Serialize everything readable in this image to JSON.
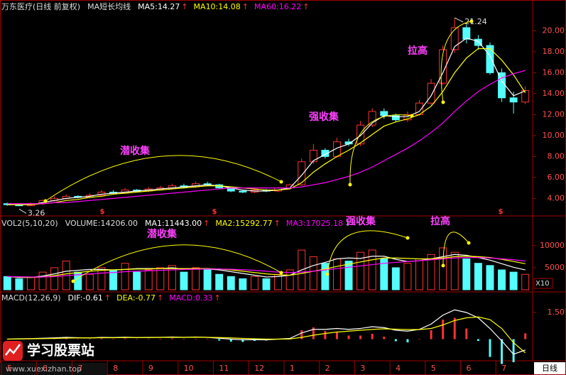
{
  "chart_data": [
    {
      "type": "candlestick",
      "title": "万东医疗(日线 前复权)",
      "subtitle": "MA短长均线",
      "categories": [
        "5",
        null,
        null,
        "6",
        null,
        null,
        "7",
        null,
        null,
        "8",
        null,
        null,
        "9",
        null,
        null,
        "10",
        null,
        null,
        "11",
        null,
        null,
        "12",
        null,
        null,
        "1",
        null,
        null,
        "2",
        null,
        null,
        "3",
        null,
        null,
        "4",
        null,
        null,
        "5",
        null,
        null,
        "6",
        null,
        null,
        "7",
        null,
        null
      ],
      "open": [
        3.5,
        3.4,
        3.3,
        3.5,
        3.8,
        4.0,
        4.2,
        4.1,
        4.3,
        4.6,
        4.5,
        4.8,
        4.7,
        4.9,
        5.0,
        5.2,
        5.1,
        5.4,
        5.3,
        5.0,
        4.7,
        4.6,
        4.8,
        4.7,
        5.0,
        5.3,
        7.5,
        8.6,
        8.0,
        9.4,
        9.2,
        11.0,
        12.3,
        11.9,
        11.5,
        12.0,
        13.1,
        15.0,
        18.2,
        20.3,
        19.2,
        18.6,
        16.0,
        13.6,
        13.2
      ],
      "high": [
        3.6,
        3.5,
        3.6,
        3.9,
        4.2,
        4.4,
        4.3,
        4.5,
        4.8,
        4.8,
        5.0,
        4.9,
        5.1,
        5.2,
        5.4,
        5.4,
        5.6,
        5.6,
        5.4,
        5.1,
        4.8,
        4.9,
        4.9,
        5.1,
        5.4,
        7.8,
        9.2,
        8.8,
        9.8,
        9.7,
        11.4,
        12.6,
        12.6,
        12.1,
        12.3,
        13.4,
        15.4,
        18.6,
        21.24,
        20.6,
        19.6,
        18.9,
        16.4,
        14.2,
        14.7
      ],
      "low": [
        3.3,
        3.26,
        3.3,
        3.4,
        3.7,
        3.9,
        4.0,
        4.0,
        4.2,
        4.4,
        4.4,
        4.6,
        4.6,
        4.8,
        4.9,
        5.0,
        5.0,
        5.2,
        4.9,
        4.6,
        4.5,
        4.5,
        4.6,
        4.6,
        4.9,
        5.2,
        7.3,
        7.8,
        7.9,
        9.0,
        9.0,
        10.8,
        11.6,
        11.3,
        11.3,
        11.9,
        12.9,
        14.8,
        17.9,
        18.8,
        18.2,
        15.8,
        13.2,
        12.1,
        13.0
      ],
      "close": [
        3.4,
        3.3,
        3.5,
        3.8,
        4.0,
        4.2,
        4.1,
        4.3,
        4.6,
        4.5,
        4.8,
        4.7,
        4.9,
        5.0,
        5.2,
        5.1,
        5.4,
        5.3,
        5.0,
        4.7,
        4.6,
        4.8,
        4.7,
        5.0,
        5.3,
        7.5,
        8.6,
        8.0,
        9.4,
        9.2,
        11.0,
        12.3,
        11.9,
        11.5,
        12.0,
        13.1,
        15.0,
        18.2,
        20.3,
        19.2,
        18.6,
        16.0,
        13.6,
        13.2,
        14.3
      ],
      "up_color": "#ff3232",
      "down_color": "#54fcfc",
      "series": [
        {
          "name": "MA5:14.27",
          "color": "#ffffff",
          "values": [
            3.4,
            3.4,
            3.4,
            3.6,
            3.8,
            4.0,
            4.1,
            4.2,
            4.4,
            4.5,
            4.6,
            4.7,
            4.8,
            4.9,
            5.0,
            5.1,
            5.2,
            5.3,
            5.2,
            5.0,
            4.8,
            4.7,
            4.7,
            4.8,
            5.0,
            6.2,
            7.6,
            8.2,
            8.8,
            9.2,
            10.0,
            11.2,
            11.9,
            11.8,
            11.8,
            12.3,
            13.8,
            16.0,
            18.5,
            19.3,
            19.0,
            17.6,
            15.2,
            13.8,
            14.27
          ]
        },
        {
          "name": "MA10:14.08",
          "color": "#ffff00",
          "values": [
            3.4,
            3.4,
            3.4,
            3.5,
            3.6,
            3.8,
            3.9,
            4.1,
            4.2,
            4.4,
            4.5,
            4.6,
            4.7,
            4.8,
            4.9,
            5.0,
            5.1,
            5.2,
            5.2,
            5.1,
            5.0,
            4.9,
            4.8,
            4.8,
            4.9,
            5.5,
            6.5,
            7.3,
            8.0,
            8.6,
            9.3,
            10.1,
            10.9,
            11.3,
            11.6,
            12.0,
            12.8,
            14.2,
            16.0,
            17.4,
            18.3,
            18.3,
            17.2,
            15.8,
            14.08
          ]
        },
        {
          "name": "MA60:16.22",
          "color": "#ff00ff",
          "values": [
            3.5,
            3.5,
            3.5,
            3.5,
            3.6,
            3.6,
            3.7,
            3.8,
            3.9,
            4.0,
            4.1,
            4.2,
            4.3,
            4.4,
            4.5,
            4.6,
            4.7,
            4.8,
            4.9,
            5.0,
            5.0,
            5.0,
            5.0,
            5.0,
            5.0,
            5.1,
            5.3,
            5.5,
            5.8,
            6.1,
            6.5,
            7.0,
            7.6,
            8.2,
            8.8,
            9.5,
            10.3,
            11.2,
            12.3,
            13.3,
            14.2,
            14.9,
            15.5,
            15.9,
            16.22
          ]
        }
      ],
      "ylim": [
        2.6,
        22.4
      ],
      "yticks": [
        {
          "value": 4,
          "label": "4.00"
        },
        {
          "value": 6,
          "label": "6.00"
        },
        {
          "value": 8,
          "label": "8.00"
        },
        {
          "value": 10,
          "label": "10.00"
        },
        {
          "value": 12,
          "label": "12.00"
        },
        {
          "value": 14,
          "label": "14.00"
        },
        {
          "value": 16,
          "label": "16.00"
        },
        {
          "value": 18,
          "label": "18.00"
        },
        {
          "value": 20,
          "label": "20.00"
        }
      ],
      "annotations": [
        "潜收集",
        "强收集",
        "拉高"
      ],
      "high_label": "21.24",
      "low_label": "3.26",
      "signal_label": "$"
    },
    {
      "type": "bar",
      "title": "VOL2(5,10,20)",
      "subtitle": "VOLUME:14206.00",
      "unit_label": "X10",
      "values": [
        3000,
        2500,
        2800,
        4000,
        5000,
        6500,
        4000,
        3500,
        5000,
        4500,
        6000,
        4000,
        4500,
        5000,
        5500,
        4000,
        5000,
        4500,
        3500,
        3000,
        2500,
        3000,
        2500,
        3500,
        4500,
        9000,
        7500,
        6000,
        7000,
        6500,
        8500,
        9000,
        7000,
        5000,
        6000,
        7000,
        8000,
        9500,
        8500,
        7000,
        6000,
        5500,
        4500,
        4000,
        3500
      ],
      "series": [
        {
          "name": "MA1:11443.00",
          "color": "#ffffff",
          "values": [
            3000,
            2800,
            2800,
            3100,
            3600,
            4200,
            4400,
            4600,
            4600,
            4500,
            4600,
            4800,
            4800,
            4800,
            5000,
            4700,
            4800,
            4700,
            4500,
            4100,
            3700,
            3300,
            2900,
            3000,
            3300,
            4500,
            5500,
            6200,
            7000,
            7200,
            7100,
            7600,
            7600,
            6900,
            6400,
            6600,
            7000,
            7500,
            8000,
            7800,
            7300,
            6700,
            5900,
            5100,
            4500
          ]
        },
        {
          "name": "MA2:15292.77",
          "color": "#ffff00",
          "values": [
            3000,
            2900,
            2800,
            2900,
            3200,
            3600,
            3900,
            4200,
            4400,
            4500,
            4600,
            4700,
            4700,
            4800,
            4800,
            4800,
            4800,
            4800,
            4700,
            4500,
            4200,
            3900,
            3600,
            3400,
            3300,
            3700,
            4200,
            4700,
            5300,
            5800,
            6300,
            6800,
            7200,
            7200,
            7100,
            7000,
            7000,
            7200,
            7500,
            7600,
            7500,
            7300,
            6900,
            6400,
            5900
          ]
        },
        {
          "name": "MA3:17025.18",
          "color": "#ff00ff",
          "values": [
            3000,
            2950,
            2900,
            2900,
            3000,
            3200,
            3400,
            3600,
            3800,
            3900,
            4100,
            4200,
            4300,
            4400,
            4500,
            4600,
            4650,
            4700,
            4700,
            4650,
            4550,
            4400,
            4200,
            4000,
            3900,
            4000,
            4200,
            4500,
            4800,
            5100,
            5400,
            5700,
            6000,
            6200,
            6400,
            6600,
            6800,
            7000,
            7200,
            7300,
            7300,
            7200,
            7000,
            6800,
            6500
          ]
        }
      ],
      "ylim": [
        0,
        14800
      ],
      "yticks": [
        5000,
        10000
      ],
      "annotations": [
        "潜收集",
        "强收集",
        "拉高"
      ]
    },
    {
      "type": "macd",
      "title": "MACD(12,26,9)",
      "series": [
        {
          "name": "DIF:-0.61",
          "color": "#ffffff",
          "values": [
            0,
            0.02,
            0.03,
            0.05,
            0.07,
            0.1,
            0.08,
            0.07,
            0.1,
            0.09,
            0.11,
            0.09,
            0.1,
            0.1,
            0.12,
            0.1,
            0.12,
            0.1,
            0.05,
            0,
            -0.04,
            -0.03,
            -0.04,
            0,
            0.04,
            0.35,
            0.55,
            0.55,
            0.6,
            0.55,
            0.6,
            0.7,
            0.65,
            0.5,
            0.45,
            0.55,
            0.85,
            1.35,
            1.65,
            1.5,
            1.2,
            0.6,
            -0.1,
            -0.85,
            -0.61
          ]
        },
        {
          "name": "DEA:-0.77",
          "color": "#ffff00",
          "values": [
            0,
            0.01,
            0.02,
            0.03,
            0.04,
            0.06,
            0.07,
            0.07,
            0.08,
            0.08,
            0.09,
            0.09,
            0.09,
            0.1,
            0.1,
            0.1,
            0.11,
            0.1,
            0.09,
            0.07,
            0.04,
            0.02,
            0,
            0,
            0.01,
            0.1,
            0.22,
            0.32,
            0.4,
            0.45,
            0.5,
            0.55,
            0.58,
            0.56,
            0.54,
            0.54,
            0.6,
            0.8,
            1.05,
            1.2,
            1.25,
            1.1,
            0.6,
            -0.2,
            -0.77
          ]
        },
        {
          "name": "MACD:0.33",
          "color": "#ff00ff",
          "values": [
            0,
            0.02,
            0.02,
            0.04,
            0.06,
            0.08,
            0.02,
            0,
            0.04,
            0.02,
            0.04,
            0,
            0.02,
            0,
            0.04,
            0,
            0.02,
            0,
            -0.08,
            -0.14,
            -0.16,
            -0.1,
            -0.08,
            0,
            0.06,
            0.5,
            0.66,
            0.46,
            0.4,
            0.2,
            0.2,
            0.3,
            0.14,
            -0.12,
            -0.18,
            0.02,
            0.5,
            1.1,
            1.2,
            0.6,
            -0.1,
            -1.0,
            -1.4,
            -1.3,
            0.33
          ]
        }
      ],
      "ylim": [
        -1.1,
        2.5
      ],
      "yticks": [
        {
          "value": 1.5,
          "label": "1.50"
        }
      ],
      "up_color": "#ff3232",
      "down_color": "#54fcfc"
    }
  ],
  "arrows": {
    "up": "↑",
    "down": "↓"
  },
  "period_tab": "日线",
  "watermark": {
    "name": "学习股票站",
    "url": "www.xuexizhan.top"
  }
}
